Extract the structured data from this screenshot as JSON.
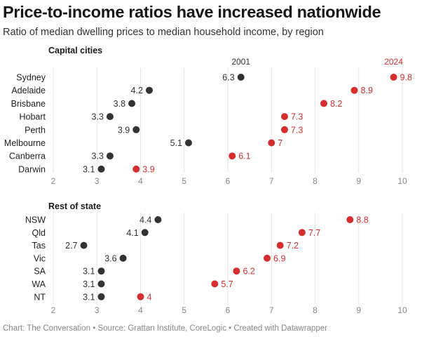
{
  "title": "Price-to-income ratios have increased nationwide",
  "subtitle": "Ratio of median dwelling prices to median household income, by region",
  "footer": "Chart: The Conversation • Source: Grattan Institute, CoreLogic • Created with Datawrapper",
  "colors": {
    "start": "#333333",
    "end": "#d62e2e",
    "bar_start": "#8c8c8c",
    "bar_end": "#f0a0a0",
    "grid": "#e6e6e6",
    "tick": "#888888"
  },
  "chart_data": [
    {
      "type": "dumbbell",
      "title": "Capital cities",
      "start_label": "2001",
      "end_label": "2024",
      "x_ticks": [
        2,
        3,
        4,
        5,
        6,
        7,
        8,
        9,
        10
      ],
      "xlim": [
        2,
        10
      ],
      "grid": true,
      "rows": [
        {
          "label": "Sydney",
          "start": 6.3,
          "end": 9.8
        },
        {
          "label": "Adelaide",
          "start": 4.2,
          "end": 8.9
        },
        {
          "label": "Brisbane",
          "start": 3.8,
          "end": 8.2
        },
        {
          "label": "Hobart",
          "start": 3.3,
          "end": 7.3
        },
        {
          "label": "Perth",
          "start": 3.9,
          "end": 7.3
        },
        {
          "label": "Melbourne",
          "start": 5.1,
          "end": 7
        },
        {
          "label": "Canberra",
          "start": 3.3,
          "end": 6.1
        },
        {
          "label": "Darwin",
          "start": 3.1,
          "end": 3.9
        }
      ]
    },
    {
      "type": "dumbbell",
      "title": "Rest of state",
      "x_ticks": [
        2,
        3,
        4,
        5,
        6,
        7,
        8,
        9,
        10
      ],
      "xlim": [
        2,
        10
      ],
      "grid": true,
      "rows": [
        {
          "label": "NSW",
          "start": 4.4,
          "end": 8.8
        },
        {
          "label": "Qld",
          "start": 4.1,
          "end": 7.7
        },
        {
          "label": "Tas",
          "start": 2.7,
          "end": 7.2
        },
        {
          "label": "Vic",
          "start": 3.6,
          "end": 6.9
        },
        {
          "label": "SA",
          "start": 3.1,
          "end": 6.2
        },
        {
          "label": "WA",
          "start": 3.1,
          "end": 5.7
        },
        {
          "label": "NT",
          "start": 3.1,
          "end": 4
        }
      ]
    }
  ]
}
